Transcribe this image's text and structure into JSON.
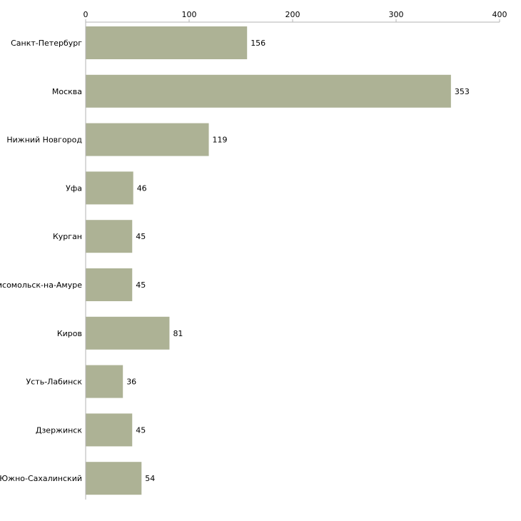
{
  "chart_data": {
    "type": "bar",
    "orientation": "horizontal",
    "title": "",
    "xlabel": "",
    "ylabel": "",
    "xlim": [
      0,
      400
    ],
    "ticks": [
      0,
      100,
      200,
      300,
      400
    ],
    "axis_position": "top",
    "grid": false,
    "bar_color": "#adb295",
    "categories": [
      "Санкт-Петербург",
      "Москва",
      "Нижний Новгород",
      "Уфа",
      "Курган",
      "Комсомольск-на-Амуре",
      "Киров",
      "Усть-Лабинск",
      "Дзержинск",
      "Южно-Сахалинский"
    ],
    "values": [
      156,
      353,
      119,
      46,
      45,
      45,
      81,
      36,
      45,
      54
    ]
  }
}
